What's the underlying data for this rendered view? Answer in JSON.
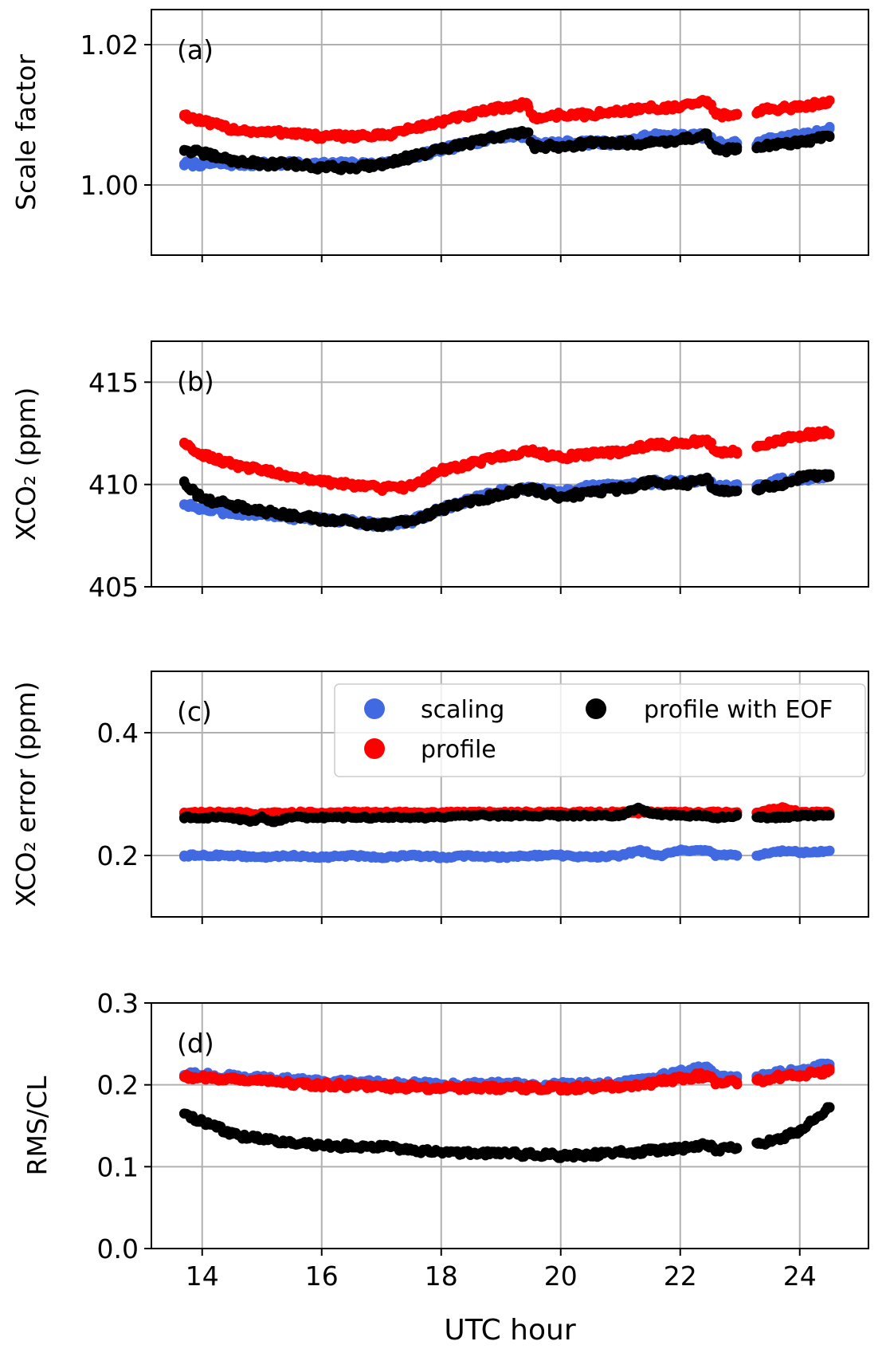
{
  "figure": {
    "shared_xlabel": "UTC hour",
    "shared_xticks": [
      14,
      16,
      18,
      20,
      22,
      24
    ],
    "xlim": [
      13.15,
      25.15
    ]
  },
  "legend": {
    "placement": "upper-right of panel (c)",
    "entries": [
      {
        "label": "scaling",
        "color": "#4169e1"
      },
      {
        "label": "profile",
        "color": "#ff0000"
      },
      {
        "label": "profile with EOF",
        "color": "#000000"
      }
    ]
  },
  "chart_data": [
    {
      "panel": "(a)",
      "type": "scatter",
      "ylabel": "Scale factor",
      "ylim": [
        0.99,
        1.025
      ],
      "yticks": [
        "1.00",
        "1.02"
      ],
      "grid": true,
      "series": [
        {
          "name": "scaling",
          "color": "#4169e1",
          "x": [
            13.7,
            14.0,
            14.5,
            15.0,
            15.5,
            16.0,
            16.5,
            17.0,
            17.5,
            18.0,
            18.5,
            19.0,
            19.45,
            19.55,
            20.0,
            20.5,
            21.0,
            21.5,
            22.0,
            22.45,
            22.6,
            22.95,
            23.3,
            23.7,
            24.0,
            24.5
          ],
          "y": [
            1.003,
            1.003,
            1.003,
            1.003,
            1.003,
            1.003,
            1.003,
            1.003,
            1.004,
            1.005,
            1.006,
            1.007,
            1.007,
            1.006,
            1.006,
            1.006,
            1.006,
            1.007,
            1.007,
            1.007,
            1.006,
            1.006,
            1.006,
            1.007,
            1.007,
            1.008
          ]
        },
        {
          "name": "profile",
          "color": "#ff0000",
          "x": [
            13.7,
            14.0,
            14.5,
            15.0,
            15.5,
            16.0,
            16.5,
            17.0,
            17.5,
            18.0,
            18.5,
            19.0,
            19.45,
            19.55,
            20.0,
            20.5,
            21.0,
            21.5,
            22.0,
            22.45,
            22.6,
            22.95,
            23.3,
            23.7,
            24.0,
            24.5
          ],
          "y": [
            1.01,
            1.009,
            1.008,
            1.0075,
            1.0075,
            1.0068,
            1.007,
            1.007,
            1.008,
            1.009,
            1.01,
            1.011,
            1.0115,
            1.0095,
            1.01,
            1.01,
            1.0105,
            1.011,
            1.011,
            1.012,
            1.01,
            1.01,
            1.0105,
            1.011,
            1.011,
            1.012
          ]
        },
        {
          "name": "profile with EOF",
          "color": "#000000",
          "x": [
            13.7,
            14.0,
            14.5,
            15.0,
            15.5,
            16.0,
            16.5,
            17.0,
            17.5,
            18.0,
            18.5,
            19.0,
            19.45,
            19.55,
            20.0,
            20.5,
            21.0,
            21.5,
            22.0,
            22.45,
            22.6,
            22.95,
            23.3,
            23.7,
            24.0,
            24.5
          ],
          "y": [
            1.005,
            1.0045,
            1.0035,
            1.003,
            1.003,
            1.0025,
            1.0025,
            1.003,
            1.004,
            1.005,
            1.006,
            1.007,
            1.0075,
            1.0055,
            1.0055,
            1.006,
            1.006,
            1.006,
            1.0065,
            1.007,
            1.005,
            1.005,
            1.0055,
            1.006,
            1.006,
            1.007
          ]
        }
      ]
    },
    {
      "panel": "(b)",
      "type": "scatter",
      "ylabel": "XCO₂ (ppm)",
      "ylim": [
        405,
        417
      ],
      "yticks": [
        "405",
        "410",
        "415"
      ],
      "grid": true,
      "series": [
        {
          "name": "scaling",
          "color": "#4169e1",
          "x": [
            13.7,
            14.0,
            14.5,
            15.0,
            15.5,
            16.0,
            16.5,
            17.0,
            17.5,
            18.0,
            18.5,
            19.0,
            19.5,
            20.0,
            20.5,
            21.0,
            21.5,
            22.0,
            22.45,
            22.6,
            22.95,
            23.3,
            23.7,
            24.0,
            24.5
          ],
          "y": [
            409.0,
            408.8,
            408.6,
            408.6,
            408.4,
            408.3,
            408.2,
            408.0,
            408.2,
            408.8,
            409.3,
            409.7,
            409.8,
            409.6,
            409.9,
            410.0,
            410.1,
            410.1,
            410.2,
            409.9,
            409.9,
            410.0,
            410.2,
            410.3,
            410.4
          ]
        },
        {
          "name": "profile",
          "color": "#ff0000",
          "x": [
            13.7,
            14.0,
            14.5,
            15.0,
            15.5,
            16.0,
            16.5,
            17.0,
            17.5,
            18.0,
            18.5,
            19.0,
            19.5,
            20.0,
            20.5,
            21.0,
            21.5,
            22.0,
            22.45,
            22.6,
            22.95,
            23.3,
            23.7,
            24.0,
            24.5
          ],
          "y": [
            412.0,
            411.5,
            411.0,
            410.7,
            410.4,
            410.1,
            410.0,
            409.8,
            409.9,
            410.7,
            411.0,
            411.4,
            411.6,
            411.3,
            411.5,
            411.6,
            411.9,
            412.0,
            412.2,
            411.6,
            411.6,
            411.9,
            412.2,
            412.4,
            412.5
          ]
        },
        {
          "name": "profile with EOF",
          "color": "#000000",
          "x": [
            13.7,
            14.0,
            14.5,
            15.0,
            15.5,
            16.0,
            16.5,
            17.0,
            17.5,
            18.0,
            18.5,
            19.0,
            19.5,
            20.0,
            20.5,
            21.0,
            21.5,
            22.0,
            22.45,
            22.6,
            22.95,
            23.3,
            23.7,
            24.0,
            24.5
          ],
          "y": [
            410.1,
            409.3,
            409.0,
            408.7,
            408.5,
            408.3,
            408.2,
            408.0,
            408.2,
            408.8,
            409.2,
            409.5,
            409.8,
            409.4,
            409.6,
            409.8,
            410.1,
            410.0,
            410.2,
            409.7,
            409.7,
            409.8,
            410.0,
            410.3,
            410.5
          ]
        }
      ]
    },
    {
      "panel": "(c)",
      "type": "scatter",
      "ylabel": "XCO₂ error (ppm)",
      "ylim": [
        0.1,
        0.5
      ],
      "yticks": [
        "0.2",
        "0.4"
      ],
      "grid": true,
      "series": [
        {
          "name": "scaling",
          "color": "#4169e1",
          "x": [
            13.7,
            14.5,
            15.0,
            15.5,
            16.0,
            16.5,
            17.0,
            17.5,
            18.0,
            18.5,
            19.0,
            19.5,
            20.0,
            20.5,
            21.0,
            21.3,
            21.7,
            22.0,
            22.45,
            22.6,
            22.95,
            23.3,
            23.7,
            24.0,
            24.5
          ],
          "y": [
            0.2,
            0.2,
            0.197,
            0.2,
            0.197,
            0.2,
            0.197,
            0.2,
            0.197,
            0.2,
            0.197,
            0.2,
            0.2,
            0.197,
            0.2,
            0.208,
            0.2,
            0.208,
            0.208,
            0.2,
            0.2,
            0.2,
            0.208,
            0.205,
            0.208
          ]
        },
        {
          "name": "profile",
          "color": "#ff0000",
          "x": [
            13.7,
            14.5,
            15.0,
            15.5,
            16.0,
            16.5,
            17.0,
            17.5,
            18.0,
            18.5,
            19.0,
            19.5,
            20.0,
            20.5,
            21.0,
            21.5,
            22.0,
            22.45,
            22.6,
            22.95,
            23.3,
            23.7,
            24.0,
            24.5
          ],
          "y": [
            0.27,
            0.27,
            0.268,
            0.27,
            0.27,
            0.27,
            0.27,
            0.27,
            0.27,
            0.27,
            0.27,
            0.27,
            0.27,
            0.27,
            0.27,
            0.27,
            0.27,
            0.27,
            0.27,
            0.27,
            0.27,
            0.278,
            0.27,
            0.27
          ]
        },
        {
          "name": "profile with EOF",
          "color": "#000000",
          "x": [
            13.7,
            14.5,
            14.8,
            15.0,
            15.2,
            15.5,
            16.0,
            16.5,
            17.0,
            17.5,
            18.0,
            18.5,
            19.0,
            19.5,
            20.0,
            20.5,
            21.0,
            21.3,
            21.5,
            22.0,
            22.45,
            22.6,
            22.95,
            23.3,
            23.7,
            24.0,
            24.5
          ],
          "y": [
            0.262,
            0.262,
            0.255,
            0.262,
            0.255,
            0.262,
            0.262,
            0.262,
            0.262,
            0.262,
            0.262,
            0.265,
            0.265,
            0.265,
            0.265,
            0.265,
            0.265,
            0.278,
            0.268,
            0.265,
            0.265,
            0.262,
            0.265,
            0.262,
            0.262,
            0.265,
            0.265
          ]
        }
      ]
    },
    {
      "panel": "(d)",
      "type": "scatter",
      "ylabel": "RMS/CL",
      "ylim": [
        0.0,
        0.3
      ],
      "yticks": [
        "0.0",
        "0.1",
        "0.2",
        "0.3"
      ],
      "grid": true,
      "series": [
        {
          "name": "scaling",
          "color": "#4169e1",
          "x": [
            13.7,
            14.0,
            14.5,
            15.0,
            15.5,
            16.0,
            16.5,
            17.0,
            17.5,
            18.0,
            18.5,
            19.0,
            19.5,
            20.0,
            20.5,
            21.0,
            21.5,
            22.0,
            22.45,
            22.6,
            22.95,
            23.3,
            23.7,
            24.0,
            24.5
          ],
          "y": [
            0.212,
            0.212,
            0.21,
            0.208,
            0.206,
            0.204,
            0.203,
            0.202,
            0.201,
            0.2,
            0.2,
            0.201,
            0.2,
            0.2,
            0.201,
            0.203,
            0.208,
            0.215,
            0.222,
            0.21,
            0.208,
            0.21,
            0.215,
            0.218,
            0.225
          ]
        },
        {
          "name": "profile",
          "color": "#ff0000",
          "x": [
            13.7,
            14.0,
            14.5,
            15.0,
            15.5,
            16.0,
            16.5,
            17.0,
            17.5,
            18.0,
            18.5,
            19.0,
            19.5,
            20.0,
            20.5,
            21.0,
            21.5,
            22.0,
            22.45,
            22.6,
            22.95,
            23.3,
            23.7,
            24.0,
            24.5
          ],
          "y": [
            0.21,
            0.209,
            0.207,
            0.205,
            0.202,
            0.2,
            0.199,
            0.198,
            0.197,
            0.196,
            0.196,
            0.197,
            0.196,
            0.196,
            0.197,
            0.198,
            0.202,
            0.208,
            0.212,
            0.203,
            0.203,
            0.205,
            0.21,
            0.212,
            0.217
          ]
        },
        {
          "name": "profile with EOF",
          "color": "#000000",
          "x": [
            13.7,
            14.0,
            14.5,
            15.0,
            15.5,
            16.0,
            16.5,
            17.0,
            17.5,
            18.0,
            18.5,
            19.0,
            19.5,
            20.0,
            20.5,
            21.0,
            21.5,
            22.0,
            22.45,
            22.6,
            22.95,
            23.3,
            23.7,
            24.0,
            24.5
          ],
          "y": [
            0.165,
            0.155,
            0.14,
            0.133,
            0.128,
            0.126,
            0.125,
            0.124,
            0.121,
            0.118,
            0.117,
            0.116,
            0.115,
            0.114,
            0.115,
            0.117,
            0.119,
            0.122,
            0.127,
            0.12,
            0.123,
            0.128,
            0.135,
            0.145,
            0.172
          ]
        }
      ]
    }
  ]
}
